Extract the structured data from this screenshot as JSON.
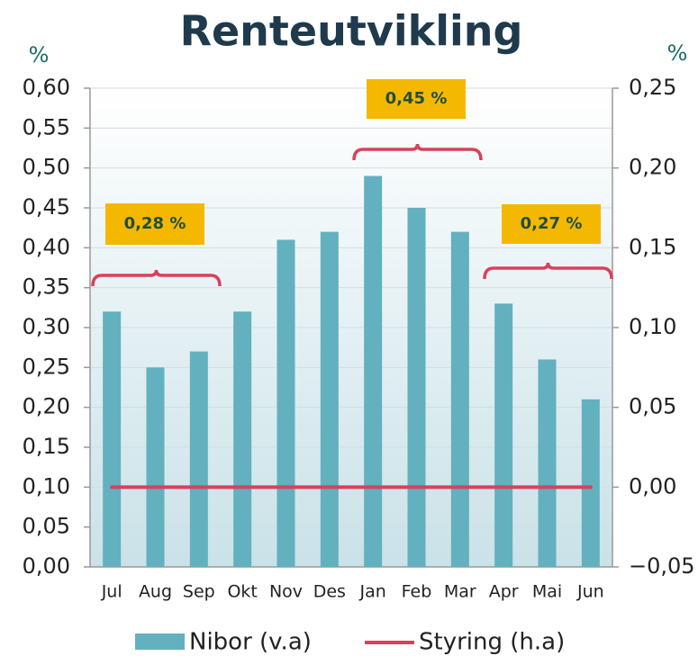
{
  "chart_data": {
    "type": "bar_line",
    "title": "Renteutvikling",
    "y_unit": "%",
    "y2_unit": "%",
    "categories": [
      "Jul",
      "Aug",
      "Sep",
      "Okt",
      "Nov",
      "Des",
      "Jan",
      "Feb",
      "Mar",
      "Apr",
      "Mai",
      "Jun"
    ],
    "series": [
      {
        "name": "Nibor (v.a)",
        "type": "bar",
        "color": "#63b0bf",
        "values": [
          0.32,
          0.25,
          0.27,
          0.32,
          0.41,
          0.42,
          0.49,
          0.45,
          0.42,
          0.33,
          0.26,
          0.21
        ]
      },
      {
        "name": "Styring (h.a)",
        "type": "line",
        "axis": "y2",
        "color": "#d9415a",
        "values": [
          0,
          0,
          0,
          0,
          0,
          0,
          0,
          0,
          0,
          0,
          0,
          0
        ]
      }
    ],
    "ylim": [
      0,
      0.6
    ],
    "yticks": [
      {
        "value": 0,
        "label": "0,00"
      },
      {
        "value": 0.05,
        "label": "0,05"
      },
      {
        "value": 0.1,
        "label": "0,10"
      },
      {
        "value": 0.15,
        "label": "0,15"
      },
      {
        "value": 0.2,
        "label": "0,20"
      },
      {
        "value": 0.25,
        "label": "0,25"
      },
      {
        "value": 0.3,
        "label": "0,30"
      },
      {
        "value": 0.35,
        "label": "0,35"
      },
      {
        "value": 0.4,
        "label": "0,40"
      },
      {
        "value": 0.45,
        "label": "0,45"
      },
      {
        "value": 0.5,
        "label": "0,50"
      },
      {
        "value": 0.55,
        "label": "0,55"
      },
      {
        "value": 0.6,
        "label": "0,60"
      }
    ],
    "y2lim": [
      -0.05,
      0.25
    ],
    "y2ticks": [
      {
        "value": -0.05,
        "label": "−0,05"
      },
      {
        "value": 0,
        "label": "0,00"
      },
      {
        "value": 0.05,
        "label": "0,05"
      },
      {
        "value": 0.1,
        "label": "0,10"
      },
      {
        "value": 0.15,
        "label": "0,15"
      },
      {
        "value": 0.2,
        "label": "0,20"
      },
      {
        "value": 0.25,
        "label": "0,25"
      }
    ],
    "grid": true,
    "annotations": [
      "0,28 %",
      "0,45 %",
      "0,27 %"
    ]
  }
}
